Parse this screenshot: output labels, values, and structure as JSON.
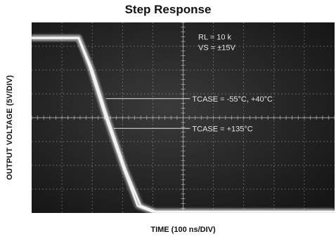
{
  "chart_data": {
    "type": "line",
    "title": "Step Response",
    "xlabel": "TIME (100 ns/DIV)",
    "ylabel": "OUTPUT VOLTAGE (5V/DIV)",
    "grid": true,
    "divisions": {
      "x": 10,
      "y": 8
    },
    "xlim": [
      0,
      10
    ],
    "ylim": [
      0,
      8
    ],
    "series": [
      {
        "name": "TCASE = -55°C, +40°C",
        "x": [
          0,
          1.0,
          1.55,
          1.9,
          2.4,
          3.0,
          3.5,
          4.0,
          10
        ],
        "y": [
          7.35,
          7.35,
          7.35,
          6.2,
          4.2,
          2.0,
          0.3,
          0.05,
          0.05
        ]
      },
      {
        "name": "TCASE = +135°C",
        "x": [
          0,
          1.0,
          1.55,
          2.0,
          2.5,
          3.1,
          3.6,
          4.1,
          10
        ],
        "y": [
          7.35,
          7.35,
          7.35,
          6.0,
          4.0,
          1.8,
          0.3,
          0.05,
          0.05
        ]
      }
    ],
    "annotations": [
      {
        "text": "RL = 10 k",
        "x": 5.5,
        "y": 7.4
      },
      {
        "text": "VS = ±15V",
        "x": 5.5,
        "y": 6.95
      },
      {
        "text": "TCASE = -55°C, +40°C",
        "x": 5.3,
        "y": 4.8,
        "arrow_to": {
          "x": 2.45,
          "y": 4.8
        }
      },
      {
        "text": "TCASE = +135°C",
        "x": 5.3,
        "y": 3.55,
        "arrow_to": {
          "x": 2.7,
          "y": 3.55
        }
      }
    ],
    "colors": {
      "screen": "#1e1e1e",
      "grid": "#bdbdbd",
      "trace": "#f4f4f4"
    }
  }
}
